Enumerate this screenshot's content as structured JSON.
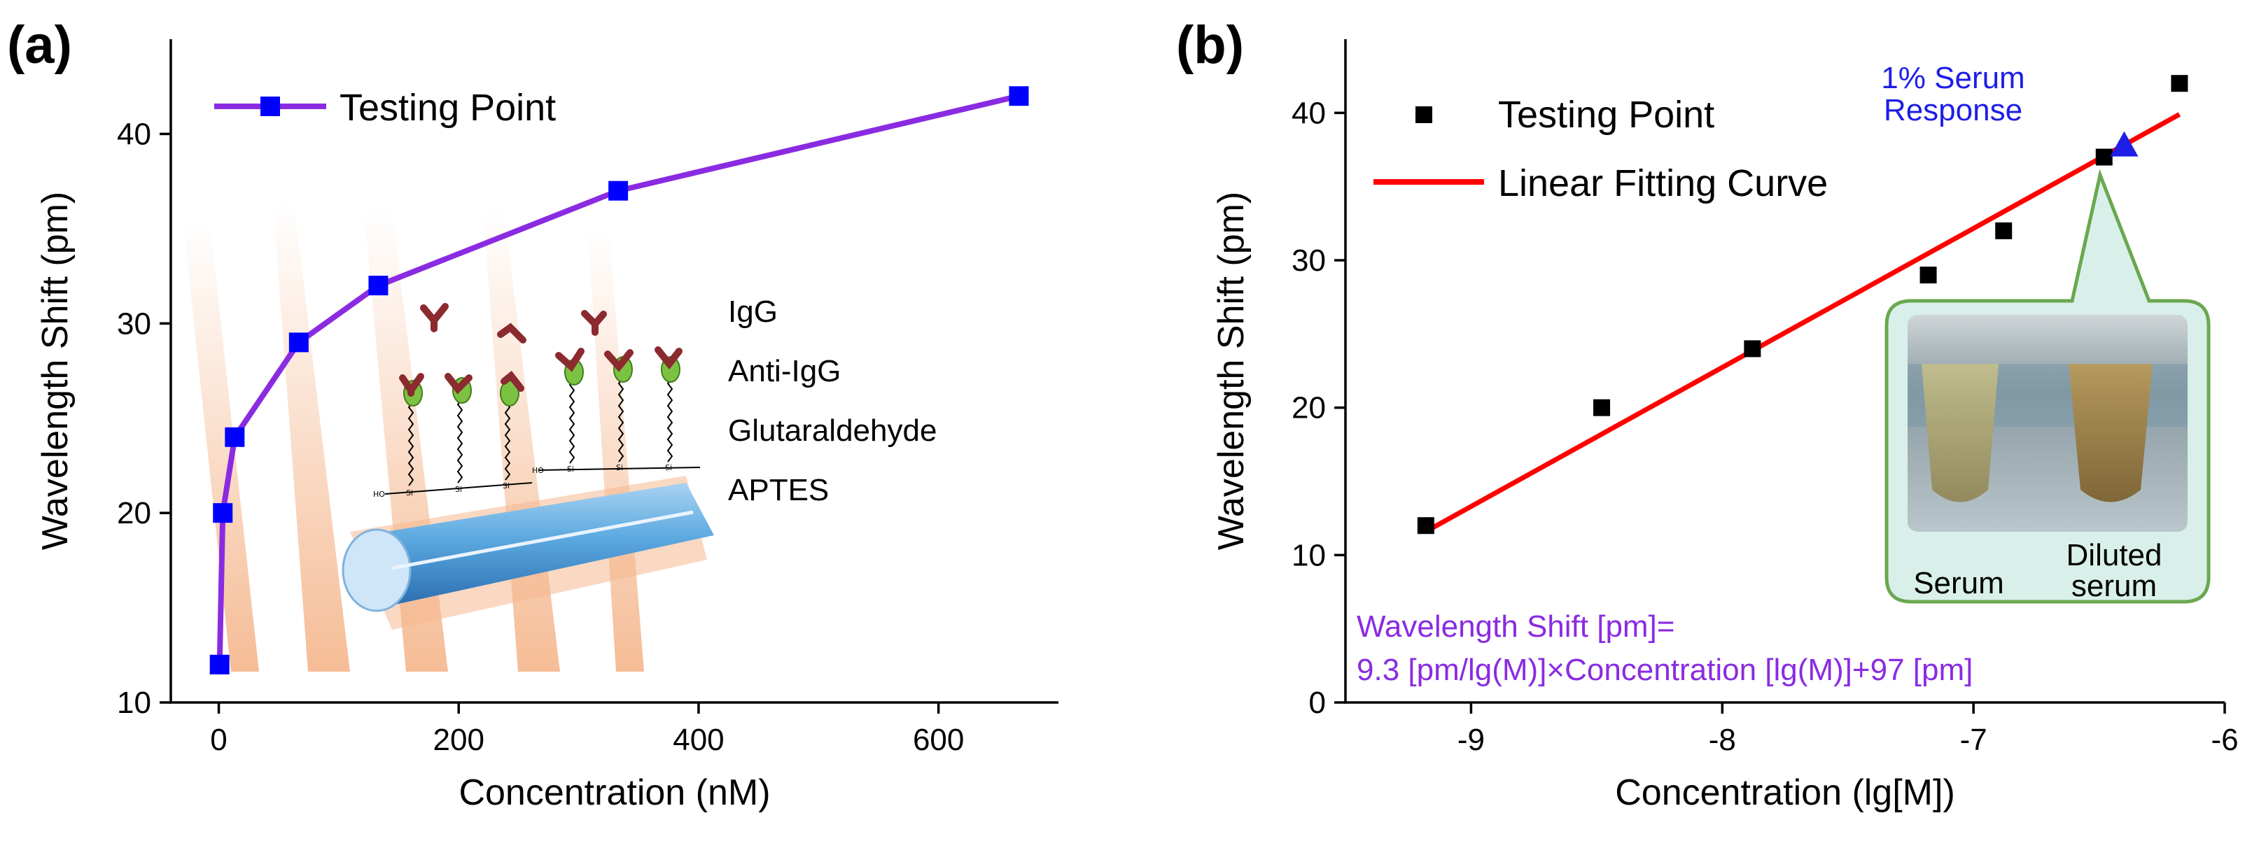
{
  "colors": {
    "line_a": "#8a2be2",
    "marker_a": "#0000ff",
    "marker_b": "#000000",
    "fit_b": "#ff0000",
    "equation": "#8a2be2",
    "annotation": "#1e1ee6",
    "callout_border": "#6aa84f",
    "callout_fill": "#d9f0ea"
  },
  "chart_data": [
    {
      "type": "line",
      "panel_label": "(a)",
      "xlabel": "Concentration (nM)",
      "ylabel": "Wavelength Shift (pm)",
      "xlim": [
        -40,
        700
      ],
      "ylim": [
        10,
        45
      ],
      "xticks": [
        0,
        200,
        400,
        600
      ],
      "yticks": [
        10,
        20,
        30,
        40
      ],
      "series": [
        {
          "name": "Testing Point",
          "x": [
            0.667,
            3.33,
            13.3,
            66.7,
            133,
            333,
            667
          ],
          "y": [
            12,
            20,
            24,
            29,
            32,
            37,
            42
          ]
        }
      ],
      "legend": [
        "Testing Point"
      ],
      "inset": {
        "layers": [
          "IgG",
          "Anti-IgG",
          "Glutaraldehyde",
          "APTES"
        ]
      }
    },
    {
      "type": "scatter",
      "panel_label": "(b)",
      "xlabel": "Concentration (lg[M])",
      "ylabel": "Wavelength Shift (pm)",
      "xlim": [
        -9.5,
        -6
      ],
      "ylim": [
        0,
        45
      ],
      "xticks": [
        -9,
        -8,
        -7,
        -6
      ],
      "yticks": [
        0,
        10,
        20,
        30,
        40
      ],
      "series": [
        {
          "name": "Testing Point",
          "x": [
            -9.18,
            -8.48,
            -7.88,
            -7.18,
            -6.88,
            -6.48,
            -6.18
          ],
          "y": [
            12,
            20,
            24,
            29,
            32,
            37,
            42
          ]
        },
        {
          "name": "Linear Fitting Curve",
          "x": [
            -9.18,
            -6.18
          ],
          "y": [
            11.6,
            39.9
          ]
        }
      ],
      "highlight": {
        "label_lines": [
          "1% Serum",
          "Response"
        ],
        "x": -6.4,
        "y": 37.8
      },
      "equation_lines": [
        "Wavelength  Shift [pm]=",
        "9.3 [pm/lg(M)]×Concentration  [lg(M)]+97 [pm]"
      ],
      "legend": [
        "Testing Point",
        "Linear Fitting Curve"
      ],
      "inset": {
        "tubes": [
          "Serum",
          "Diluted",
          "serum"
        ]
      }
    }
  ]
}
